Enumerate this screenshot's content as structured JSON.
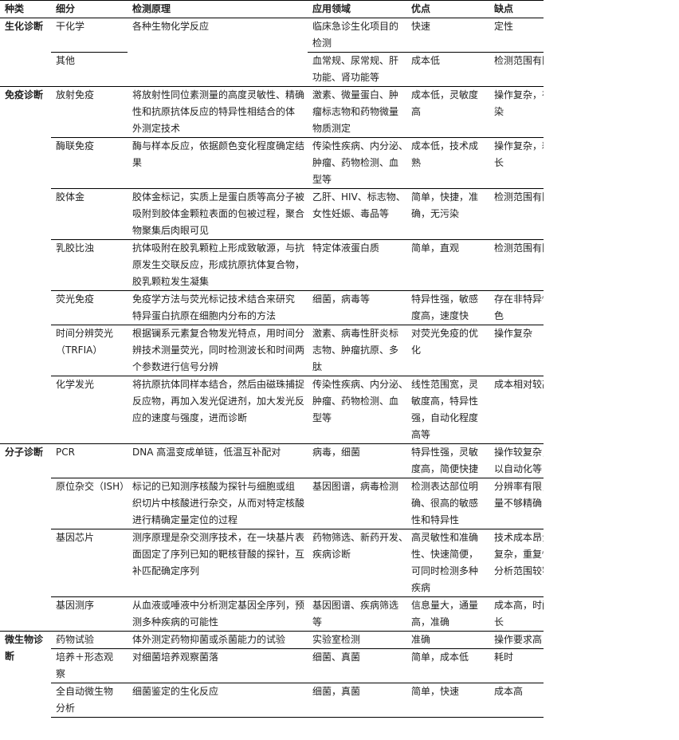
{
  "headers": [
    "种类",
    "细分",
    "检测原理",
    "应用领域",
    "优点",
    "缺点"
  ],
  "groups": [
    {
      "category": "生化诊断",
      "shared_principle": "各种生物化学反应",
      "items": [
        {
          "name": "干化学",
          "application": "临床急诊生化项目的\n检测",
          "advantages": "快速",
          "disadvantages": "定性"
        },
        {
          "name": "其他",
          "application": "血常规、尿常规、肝\n功能、肾功能等",
          "advantages": "成本低",
          "disadvantages": "检测范围有限"
        }
      ]
    },
    {
      "category": "免疫诊断",
      "items": [
        {
          "name": "放射免疫",
          "principle": "将放射性同位素测量的高度灵敏性、精确\n性和抗原抗体反应的特异性相结合的体\n外测定技术",
          "application": "激素、微量蛋白、肿\n瘤标志物和药物微量\n物质测定",
          "advantages": "成本低，灵敏度\n高",
          "disadvantages": "操作复杂，有污\n染"
        },
        {
          "name": "酶联免疫",
          "principle": "酶与样本反应，依据颜色变化程度确定结\n果",
          "application": "传染性疾病、内分泌、\n肿瘤、药物检测、血\n型等",
          "advantages": "成本低，技术成\n熟",
          "disadvantages": "操作复杂，耗时\n长"
        },
        {
          "name": "胶体金",
          "principle": "胶体金标记，实质上是蛋白质等高分子被\n吸附到胶体金颗粒表面的包被过程，聚合\n物聚集后肉眼可见",
          "application": "乙肝、HIV、标志物、\n女性妊娠、毒品等",
          "advantages": "简单，快捷，准\n确，无污染",
          "disadvantages": "检测范围有限"
        },
        {
          "name": "乳胶比浊",
          "principle": "抗体吸附在胶乳颗粒上形成致敏源，与抗\n原发生交联反应，形成抗原抗体复合物，\n胶乳颗粒发生凝集",
          "application": "特定体液蛋白质",
          "advantages": "简单，直观",
          "disadvantages": "检测范围有限"
        },
        {
          "name": "荧光免疫",
          "principle": "免疫学方法与荧光标记技术结合来研究\n特异蛋白抗原在细胞内分布的方法",
          "application": "细菌，病毒等",
          "advantages": "特异性强，敏感\n度高，速度快",
          "disadvantages": "存在非特异性染\n色"
        },
        {
          "name": "时间分辨荧光\n（TRFIA）",
          "principle": "根据镧系元素复合物发光特点，用时间分\n辨技术测量荧光，同时检测波长和时间两\n个参数进行信号分辨",
          "application": "激素、病毒性肝炎标\n志物、肿瘤抗原、多\n肽",
          "advantages": "对荧光免疫的优\n化",
          "disadvantages": "操作复杂"
        },
        {
          "name": "化学发光",
          "principle": "将抗原抗体同样本结合，然后由磁珠捕捉\n反应物，再加入发光促进剂，加大发光反\n应的速度与强度，进而诊断",
          "application": "传染性疾病、内分泌、\n肿瘤、药物检测、血\n型等",
          "advantages": "线性范围宽，灵\n敏度高，特异性\n强，自动化程度\n高等",
          "disadvantages": "成本相对较高"
        }
      ]
    },
    {
      "category": "分子诊断",
      "items": [
        {
          "name": "PCR",
          "principle": "DNA 高温变成单链，低温互补配对",
          "application": "病毒，细菌",
          "advantages": "特异性强，灵敏\n度高，简便快捷",
          "disadvantages": "操作较复杂，难\n以自动化等"
        },
        {
          "name": "原位杂交（ISH）",
          "principle": "标记的已知测序核酸为探针与细胞或组\n织切片中核酸进行杂交，从而对特定核酸\n进行精确定量定位的过程",
          "application": "基因图谱，病毒检测",
          "advantages": "检测表达部位明\n确、很高的敏感\n性和特异性",
          "disadvantages": "分辨率有限，定\n量不够精确"
        },
        {
          "name": "基因芯片",
          "principle": "测序原理是杂交测序技术，在一块基片表\n面固定了序列已知的靶核苷酸的探针，互\n补匹配确定序列",
          "application": "药物筛选、新药开发、\n疾病诊断",
          "advantages": "高灵敏性和准确\n性、快速简便，\n可同时检测多种\n疾病",
          "disadvantages": "技术成本昂贵、\n复杂，重复性差，\n分析范围较窄"
        },
        {
          "name": "基因测序",
          "principle": "从血液或唾液中分析测定基因全序列，预\n测多种疾病的可能性",
          "application": "基因图谱、疾病筛选\n等",
          "advantages": "信息量大，通量\n高，准确",
          "disadvantages": "成本高，时间较\n长"
        }
      ]
    },
    {
      "category": "微生物诊\n断",
      "items": [
        {
          "name": "药物试验",
          "principle": "体外测定药物抑菌或杀菌能力的试验",
          "application": "实验室检测",
          "advantages": "准确",
          "disadvantages": "操作要求高"
        },
        {
          "name": "培养＋形态观\n察",
          "principle": "对细菌培养观察菌落",
          "application": "细菌、真菌",
          "advantages": "简单，成本低",
          "disadvantages": "耗时"
        },
        {
          "name": "全自动微生物\n分析",
          "principle": "细菌鉴定的生化反应",
          "application": "细菌，真菌",
          "advantages": "简单，快速",
          "disadvantages": "成本高"
        }
      ]
    }
  ]
}
